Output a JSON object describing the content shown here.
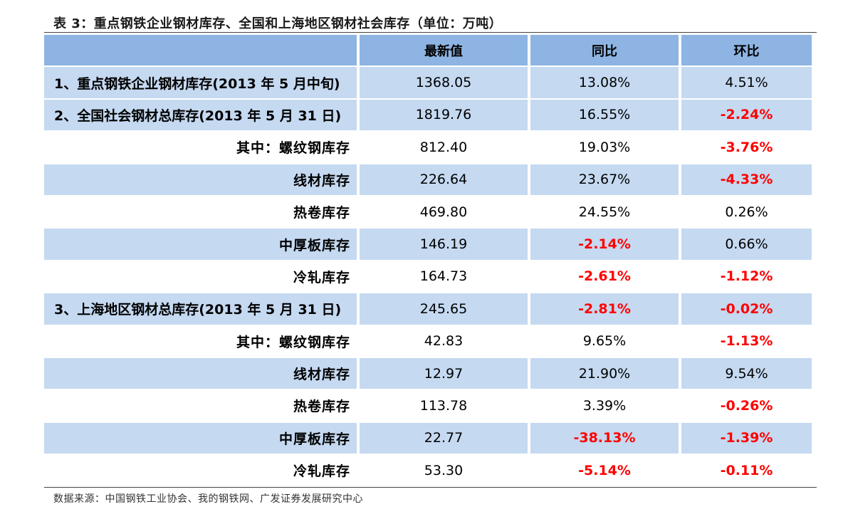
{
  "title": "表 3：重点钢铁企业钢材库存、全国和上海地区钢材社会库存（单位：万吨）",
  "header": {
    "col0": "",
    "col1": "最新值",
    "col2": "同比",
    "col3": "环比"
  },
  "rows": [
    {
      "label": "1、重点钢铁企业钢材库存(2013 年 5 月中旬)",
      "latest": "1368.05",
      "yoy": "13.08%",
      "mom": "4.51%"
    },
    {
      "label": "2、全国社会钢材总库存(2013 年 5 月 31 日)",
      "latest": "1819.76",
      "yoy": "16.55%",
      "mom": "-2.24%"
    },
    {
      "label": "其中：螺纹钢库存",
      "latest": "812.40",
      "yoy": "19.03%",
      "mom": "-3.76%"
    },
    {
      "label": "线材库存",
      "latest": "226.64",
      "yoy": "23.67%",
      "mom": "-4.33%"
    },
    {
      "label": "热卷库存",
      "latest": "469.80",
      "yoy": "24.55%",
      "mom": "0.26%"
    },
    {
      "label": "中厚板库存",
      "latest": "146.19",
      "yoy": "-2.14%",
      "mom": "0.66%"
    },
    {
      "label": "冷轧库存",
      "latest": "164.73",
      "yoy": "-2.61%",
      "mom": "-1.12%"
    },
    {
      "label": "3、上海地区钢材总库存(2013 年 5 月 31 日)",
      "latest": "245.65",
      "yoy": "-2.81%",
      "mom": "-0.02%"
    },
    {
      "label": "其中：螺纹钢库存",
      "latest": "42.83",
      "yoy": "9.65%",
      "mom": "-1.13%"
    },
    {
      "label": "线材库存",
      "latest": "12.97",
      "yoy": "21.90%",
      "mom": "9.54%"
    },
    {
      "label": "热卷库存",
      "latest": "113.78",
      "yoy": "3.39%",
      "mom": "-0.26%"
    },
    {
      "label": "中厚板库存",
      "latest": "22.77",
      "yoy": "-38.13%",
      "mom": "-1.39%"
    },
    {
      "label": "冷轧库存",
      "latest": "53.30",
      "yoy": "-5.14%",
      "mom": "-0.11%"
    }
  ],
  "source": "数据来源：中国钢铁工业协会、我的钢铁网、广发证券发展研究中心",
  "colors": {
    "header_bg": "#8db4e2",
    "band_bg": "#c5d9f1",
    "negative": "#ff0000"
  }
}
